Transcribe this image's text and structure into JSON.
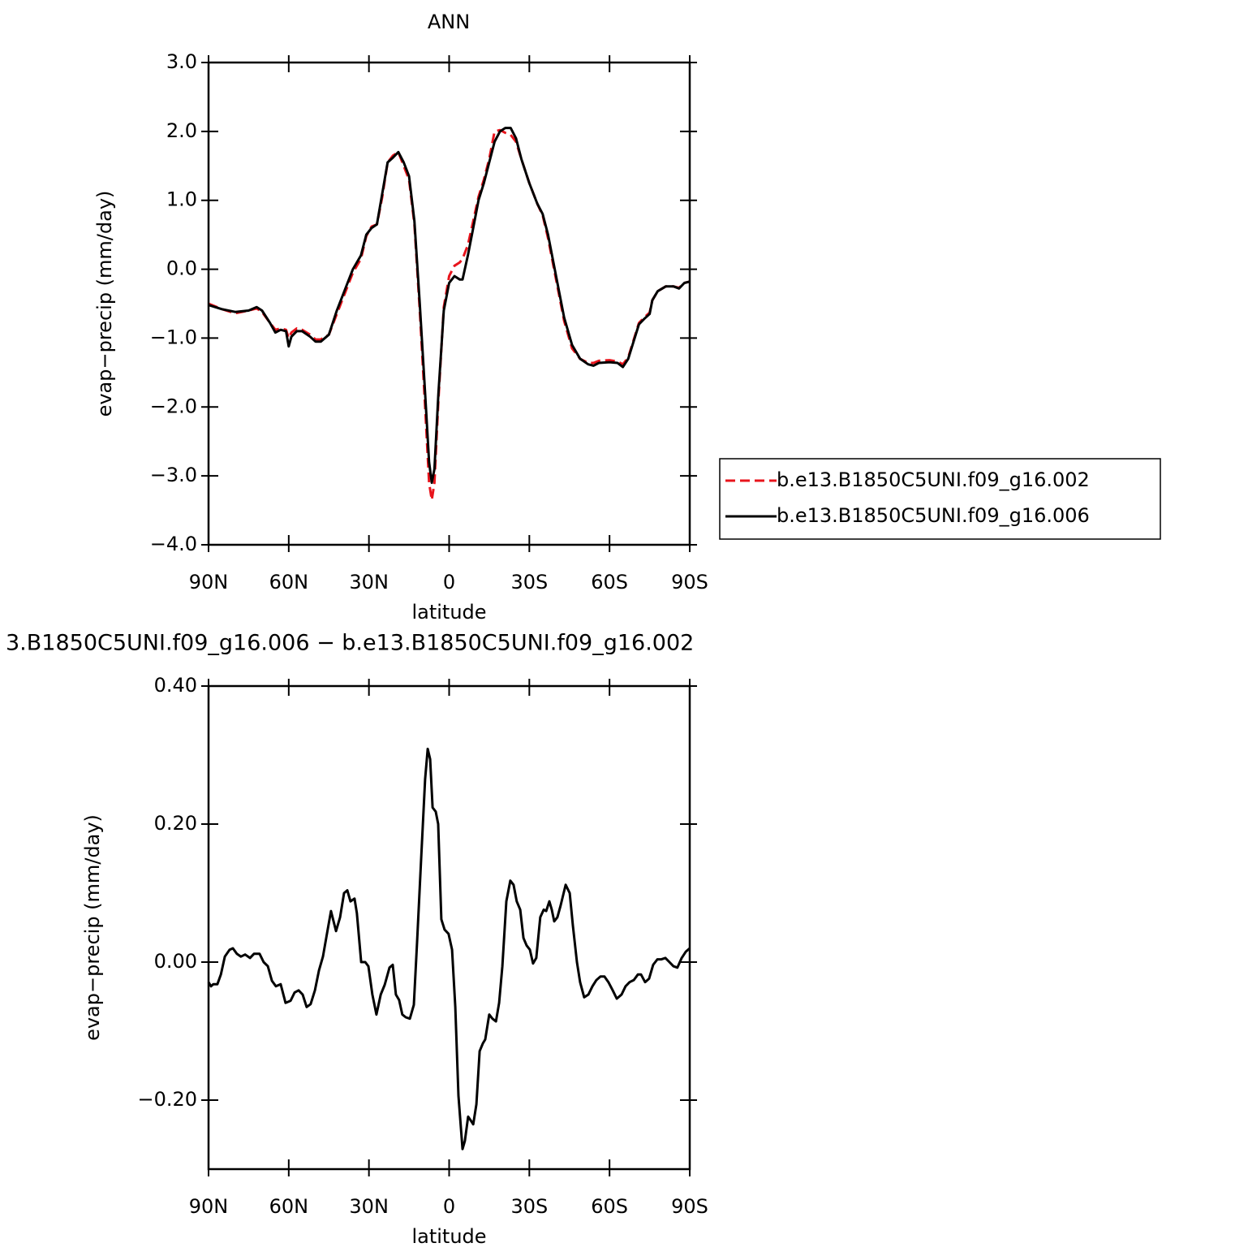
{
  "chart_data": [
    {
      "type": "line",
      "title": "ANN",
      "xlabel": "latitude",
      "ylabel": "evap−precip (mm/day)",
      "x": [
        90,
        85,
        80,
        75,
        72,
        70,
        67,
        65,
        63,
        61,
        60,
        59,
        57,
        55,
        52,
        50,
        48,
        45,
        42,
        39,
        36,
        33,
        31,
        29,
        27,
        25,
        23,
        21,
        19,
        17,
        15,
        13,
        11,
        9,
        7.5,
        6.5,
        5.5,
        4,
        2,
        0,
        -2,
        -4,
        -5,
        -7,
        -9,
        -11,
        -13,
        -15,
        -17,
        -19,
        -21,
        -23,
        -25,
        -27,
        -30,
        -33,
        -35,
        -37,
        -40,
        -43,
        -46,
        -49,
        -52,
        -54,
        -56,
        -60,
        -63,
        -65,
        -67,
        -69,
        -71,
        -73,
        -75,
        -76,
        -78,
        -81,
        -84,
        -86,
        -88,
        -90
      ],
      "series": [
        {
          "name": "b.e13.B1850C5UNI.f09_g16.002",
          "color": "#e8141c",
          "style": "dashed",
          "values": [
            -0.5,
            -0.58,
            -0.64,
            -0.6,
            -0.57,
            -0.62,
            -0.78,
            -0.88,
            -0.86,
            -0.88,
            -1.0,
            -0.92,
            -0.86,
            -0.88,
            -0.95,
            -1.02,
            -1.02,
            -0.95,
            -0.65,
            -0.35,
            -0.05,
            0.15,
            0.48,
            0.62,
            0.65,
            1.05,
            1.55,
            1.65,
            1.7,
            1.5,
            1.3,
            0.65,
            -0.6,
            -2.0,
            -3.1,
            -3.35,
            -3.1,
            -1.9,
            -0.55,
            -0.1,
            0.05,
            0.1,
            0.15,
            0.35,
            0.7,
            1.05,
            1.3,
            1.6,
            2.0,
            2.02,
            1.98,
            1.95,
            1.85,
            1.6,
            1.25,
            0.95,
            0.78,
            0.45,
            -0.15,
            -0.75,
            -1.15,
            -1.3,
            -1.36,
            -1.36,
            -1.33,
            -1.32,
            -1.34,
            -1.38,
            -1.28,
            -1.03,
            -0.78,
            -0.7,
            -0.63,
            -0.45,
            -0.32,
            -0.25,
            -0.25,
            -0.27,
            -0.2,
            -0.18
          ]
        },
        {
          "name": "b.e13.B1850C5UNI.f09_g16.006",
          "color": "#000000",
          "style": "solid",
          "values": [
            -0.52,
            -0.58,
            -0.62,
            -0.6,
            -0.55,
            -0.6,
            -0.78,
            -0.92,
            -0.88,
            -0.9,
            -1.12,
            -0.98,
            -0.9,
            -0.9,
            -0.98,
            -1.05,
            -1.05,
            -0.95,
            -0.6,
            -0.3,
            0.0,
            0.2,
            0.5,
            0.6,
            0.65,
            1.1,
            1.55,
            1.62,
            1.7,
            1.55,
            1.35,
            0.7,
            -0.5,
            -1.8,
            -2.8,
            -3.1,
            -2.9,
            -1.8,
            -0.6,
            -0.2,
            -0.1,
            -0.15,
            -0.15,
            0.2,
            0.6,
            1.0,
            1.25,
            1.55,
            1.85,
            2.0,
            2.05,
            2.05,
            1.9,
            1.6,
            1.25,
            0.95,
            0.8,
            0.5,
            -0.1,
            -0.7,
            -1.1,
            -1.3,
            -1.38,
            -1.4,
            -1.36,
            -1.35,
            -1.36,
            -1.42,
            -1.3,
            -1.05,
            -0.8,
            -0.72,
            -0.65,
            -0.45,
            -0.32,
            -0.25,
            -0.25,
            -0.28,
            -0.2,
            -0.18
          ]
        }
      ],
      "xlim": [
        90,
        -90
      ],
      "xticks": [
        {
          "value": 90,
          "label": "90N"
        },
        {
          "value": 60,
          "label": "60N"
        },
        {
          "value": 30,
          "label": "30N"
        },
        0,
        {
          "value": -30,
          "label": "30S"
        },
        {
          "value": -60,
          "label": "60S"
        },
        {
          "value": -90,
          "label": "90S"
        }
      ],
      "ylim": [
        -4,
        3
      ],
      "yticks": [
        {
          "value": 3,
          "label": "3.0"
        },
        {
          "value": 2,
          "label": "2.0"
        },
        {
          "value": 1,
          "label": "1.0"
        },
        {
          "value": 0,
          "label": "0.0"
        },
        {
          "value": -1,
          "label": "−1.0"
        },
        {
          "value": -2,
          "label": "−2.0"
        },
        {
          "value": -3,
          "label": "−3.0"
        },
        {
          "value": -4,
          "label": "−4.0"
        }
      ],
      "legend": "right"
    },
    {
      "type": "line",
      "title": "3.B1850C5UNI.f09_g16.006 − b.e13.B1850C5UNI.f09_g16.002",
      "xlabel": "latitude",
      "ylabel": "evap−precip (mm/day)",
      "x": [
        90.0,
        89.1,
        88.2,
        86.7,
        85.4,
        83.9,
        82.1,
        80.9,
        79.4,
        77.9,
        76.3,
        74.5,
        73.0,
        70.9,
        69.4,
        67.8,
        66.3,
        64.8,
        63.0,
        61.2,
        59.3,
        57.8,
        56.3,
        54.8,
        53.3,
        51.8,
        50.2,
        48.7,
        47.2,
        45.7,
        44.2,
        42.3,
        40.8,
        39.3,
        38.1,
        36.9,
        35.4,
        34.5,
        32.9,
        31.4,
        30.2,
        28.7,
        27.2,
        25.6,
        24.1,
        22.3,
        21.1,
        19.9,
        18.7,
        17.5,
        16.2,
        14.7,
        13.2,
        12.0,
        10.5,
        9.0,
        8.0,
        7.1,
        6.2,
        5.0,
        4.1,
        2.9,
        1.7,
        0.2,
        -1.1,
        -2.3,
        -3.5,
        -5.0,
        -5.9,
        -7.1,
        -8.0,
        -9.0,
        -10.2,
        -11.4,
        -12.6,
        -13.5,
        -15.0,
        -16.2,
        -17.5,
        -18.7,
        -19.9,
        -21.4,
        -22.9,
        -24.1,
        -25.3,
        -26.6,
        -27.8,
        -29.0,
        -30.2,
        -31.4,
        -32.6,
        -34.1,
        -35.4,
        -36.3,
        -37.5,
        -38.4,
        -39.3,
        -40.5,
        -41.7,
        -43.6,
        -45.1,
        -46.3,
        -47.8,
        -49.0,
        -50.5,
        -52.1,
        -53.6,
        -55.1,
        -56.6,
        -58.1,
        -59.6,
        -61.2,
        -62.7,
        -64.5,
        -66.0,
        -67.5,
        -69.1,
        -70.6,
        -71.8,
        -73.3,
        -74.8,
        -76.3,
        -77.9,
        -79.4,
        -80.9,
        -82.4,
        -83.9,
        -85.4,
        -87.0,
        -88.5,
        -90.0
      ],
      "series": [
        {
          "color": "#000000",
          "style": "solid",
          "values": [
            -0.029,
            -0.035,
            -0.032,
            -0.032,
            -0.018,
            0.008,
            0.018,
            0.02,
            0.012,
            0.008,
            0.011,
            0.006,
            0.012,
            0.012,
            0.0,
            -0.006,
            -0.027,
            -0.035,
            -0.032,
            -0.059,
            -0.056,
            -0.044,
            -0.041,
            -0.047,
            -0.065,
            -0.061,
            -0.041,
            -0.012,
            0.008,
            0.041,
            0.074,
            0.045,
            0.065,
            0.1,
            0.104,
            0.088,
            0.092,
            0.071,
            0.0,
            0.0,
            -0.006,
            -0.047,
            -0.076,
            -0.047,
            -0.033,
            -0.008,
            -0.004,
            -0.047,
            -0.055,
            -0.076,
            -0.08,
            -0.082,
            -0.062,
            0.029,
            0.147,
            0.265,
            0.309,
            0.294,
            0.224,
            0.218,
            0.2,
            0.062,
            0.047,
            0.041,
            0.018,
            -0.065,
            -0.194,
            -0.271,
            -0.259,
            -0.224,
            -0.229,
            -0.235,
            -0.206,
            -0.129,
            -0.118,
            -0.112,
            -0.076,
            -0.082,
            -0.086,
            -0.059,
            -0.006,
            0.088,
            0.118,
            0.112,
            0.088,
            0.076,
            0.035,
            0.024,
            0.018,
            -0.002,
            0.006,
            0.065,
            0.076,
            0.074,
            0.088,
            0.076,
            0.059,
            0.065,
            0.082,
            0.112,
            0.1,
            0.053,
            0.0,
            -0.029,
            -0.051,
            -0.047,
            -0.035,
            -0.026,
            -0.021,
            -0.021,
            -0.029,
            -0.041,
            -0.053,
            -0.047,
            -0.035,
            -0.029,
            -0.026,
            -0.018,
            -0.018,
            -0.029,
            -0.024,
            -0.004,
            0.004,
            0.004,
            0.006,
            0.0,
            -0.006,
            -0.008,
            0.006,
            0.015,
            0.02
          ]
        }
      ],
      "xlim": [
        90,
        -90
      ],
      "xticks": [
        {
          "value": 90,
          "label": "90N"
        },
        {
          "value": 60,
          "label": "60N"
        },
        {
          "value": 30,
          "label": "30N"
        },
        0,
        {
          "value": -30,
          "label": "30S"
        },
        {
          "value": -60,
          "label": "60S"
        },
        {
          "value": -90,
          "label": "90S"
        }
      ],
      "ylim": [
        -0.3,
        0.4
      ],
      "yticks": [
        {
          "value": 0.4,
          "label": "0.40"
        },
        {
          "value": 0.2,
          "label": "0.20"
        },
        {
          "value": 0,
          "label": "0.00"
        },
        {
          "value": -0.2,
          "label": "−0.20"
        }
      ]
    }
  ]
}
